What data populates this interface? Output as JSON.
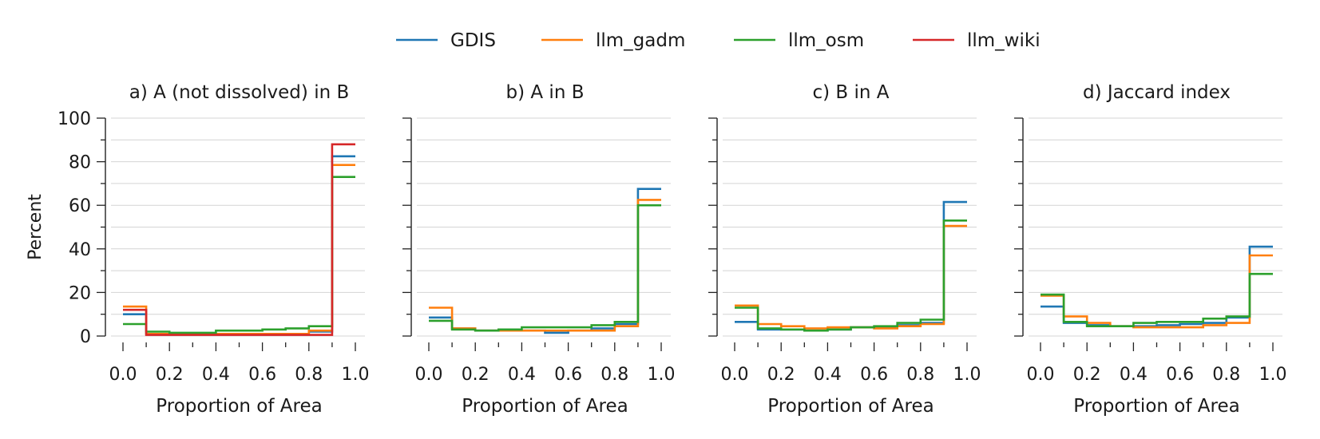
{
  "legend": [
    {
      "name": "GDIS",
      "color": "#1f77b4"
    },
    {
      "name": "llm_gadm",
      "color": "#ff7f0e"
    },
    {
      "name": "llm_osm",
      "color": "#2ca02c"
    },
    {
      "name": "llm_wiki",
      "color": "#d62728"
    }
  ],
  "chart_data": [
    {
      "type": "step",
      "title": "a) A (not dissolved) in B",
      "xlabel": "Proportion of Area",
      "ylabel": "Percent",
      "xlim": [
        0.0,
        1.0
      ],
      "ylim": [
        0,
        100
      ],
      "x_edges": [
        0.0,
        0.1,
        0.2,
        0.3,
        0.4,
        0.5,
        0.6,
        0.7,
        0.8,
        0.9,
        1.0
      ],
      "x_ticks": [
        "0.0",
        "0.2",
        "0.4",
        "0.6",
        "0.8",
        "1.0"
      ],
      "y_ticks": [
        "0",
        "20",
        "40",
        "60",
        "80",
        "100"
      ],
      "series": [
        {
          "name": "GDIS",
          "values": [
            10,
            1,
            1,
            1,
            1,
            1,
            1,
            1,
            2,
            82.5
          ]
        },
        {
          "name": "llm_gadm",
          "values": [
            13.5,
            1,
            1,
            1,
            1,
            1,
            1,
            1,
            2.5,
            78.5
          ]
        },
        {
          "name": "llm_osm",
          "values": [
            5.5,
            2,
            1.5,
            1.5,
            2.5,
            2.5,
            3,
            3.5,
            4.5,
            73
          ]
        },
        {
          "name": "llm_wiki",
          "values": [
            12,
            0.5,
            0.5,
            0.5,
            0.5,
            0.5,
            0.5,
            0.5,
            0.5,
            88
          ]
        }
      ]
    },
    {
      "type": "step",
      "title": "b) A in B",
      "xlabel": "Proportion of Area",
      "xlim": [
        0.0,
        1.0
      ],
      "ylim": [
        0,
        100
      ],
      "x_edges": [
        0.0,
        0.1,
        0.2,
        0.3,
        0.4,
        0.5,
        0.6,
        0.7,
        0.8,
        0.9,
        1.0
      ],
      "x_ticks": [
        "0.0",
        "0.2",
        "0.4",
        "0.6",
        "0.8",
        "1.0"
      ],
      "series": [
        {
          "name": "GDIS",
          "values": [
            8.5,
            3.5,
            2.5,
            2.5,
            2.5,
            1.5,
            2.5,
            3.5,
            5.5,
            67.5
          ]
        },
        {
          "name": "llm_gadm",
          "values": [
            13,
            3.5,
            2.5,
            2.5,
            2.5,
            2.5,
            2.5,
            2.5,
            4.5,
            62.5
          ]
        },
        {
          "name": "llm_osm",
          "values": [
            7,
            3,
            2.5,
            3,
            4,
            4,
            4,
            5,
            6.5,
            60
          ]
        }
      ]
    },
    {
      "type": "step",
      "title": "c) B in A",
      "xlabel": "Proportion of Area",
      "xlim": [
        0.0,
        1.0
      ],
      "ylim": [
        0,
        100
      ],
      "x_edges": [
        0.0,
        0.1,
        0.2,
        0.3,
        0.4,
        0.5,
        0.6,
        0.7,
        0.8,
        0.9,
        1.0
      ],
      "x_ticks": [
        "0.0",
        "0.2",
        "0.4",
        "0.6",
        "0.8",
        "1.0"
      ],
      "series": [
        {
          "name": "GDIS",
          "values": [
            6.5,
            3,
            3,
            2.5,
            3,
            4,
            4,
            5,
            6,
            61.5
          ]
        },
        {
          "name": "llm_gadm",
          "values": [
            14,
            5.5,
            4.5,
            3.5,
            4,
            4,
            3.5,
            4.5,
            5.5,
            50.5
          ]
        },
        {
          "name": "llm_osm",
          "values": [
            13,
            3.5,
            3,
            2.5,
            3,
            4,
            4.5,
            6,
            7.5,
            53
          ]
        }
      ]
    },
    {
      "type": "step",
      "title": "d) Jaccard index",
      "xlabel": "Proportion of Area",
      "xlim": [
        0.0,
        1.0
      ],
      "ylim": [
        0,
        100
      ],
      "x_edges": [
        0.0,
        0.1,
        0.2,
        0.3,
        0.4,
        0.5,
        0.6,
        0.7,
        0.8,
        0.9,
        1.0
      ],
      "x_ticks": [
        "0.0",
        "0.2",
        "0.4",
        "0.6",
        "0.8",
        "1.0"
      ],
      "series": [
        {
          "name": "GDIS",
          "values": [
            13.5,
            6,
            5,
            4.5,
            4.5,
            5,
            5.5,
            6,
            8.5,
            41
          ]
        },
        {
          "name": "llm_gadm",
          "values": [
            18.5,
            9,
            6,
            4.5,
            4,
            4,
            4,
            5,
            6,
            37
          ]
        },
        {
          "name": "llm_osm",
          "values": [
            19,
            6.5,
            4.5,
            4.5,
            6,
            6.5,
            6.5,
            8,
            9,
            28.5
          ]
        }
      ]
    }
  ]
}
